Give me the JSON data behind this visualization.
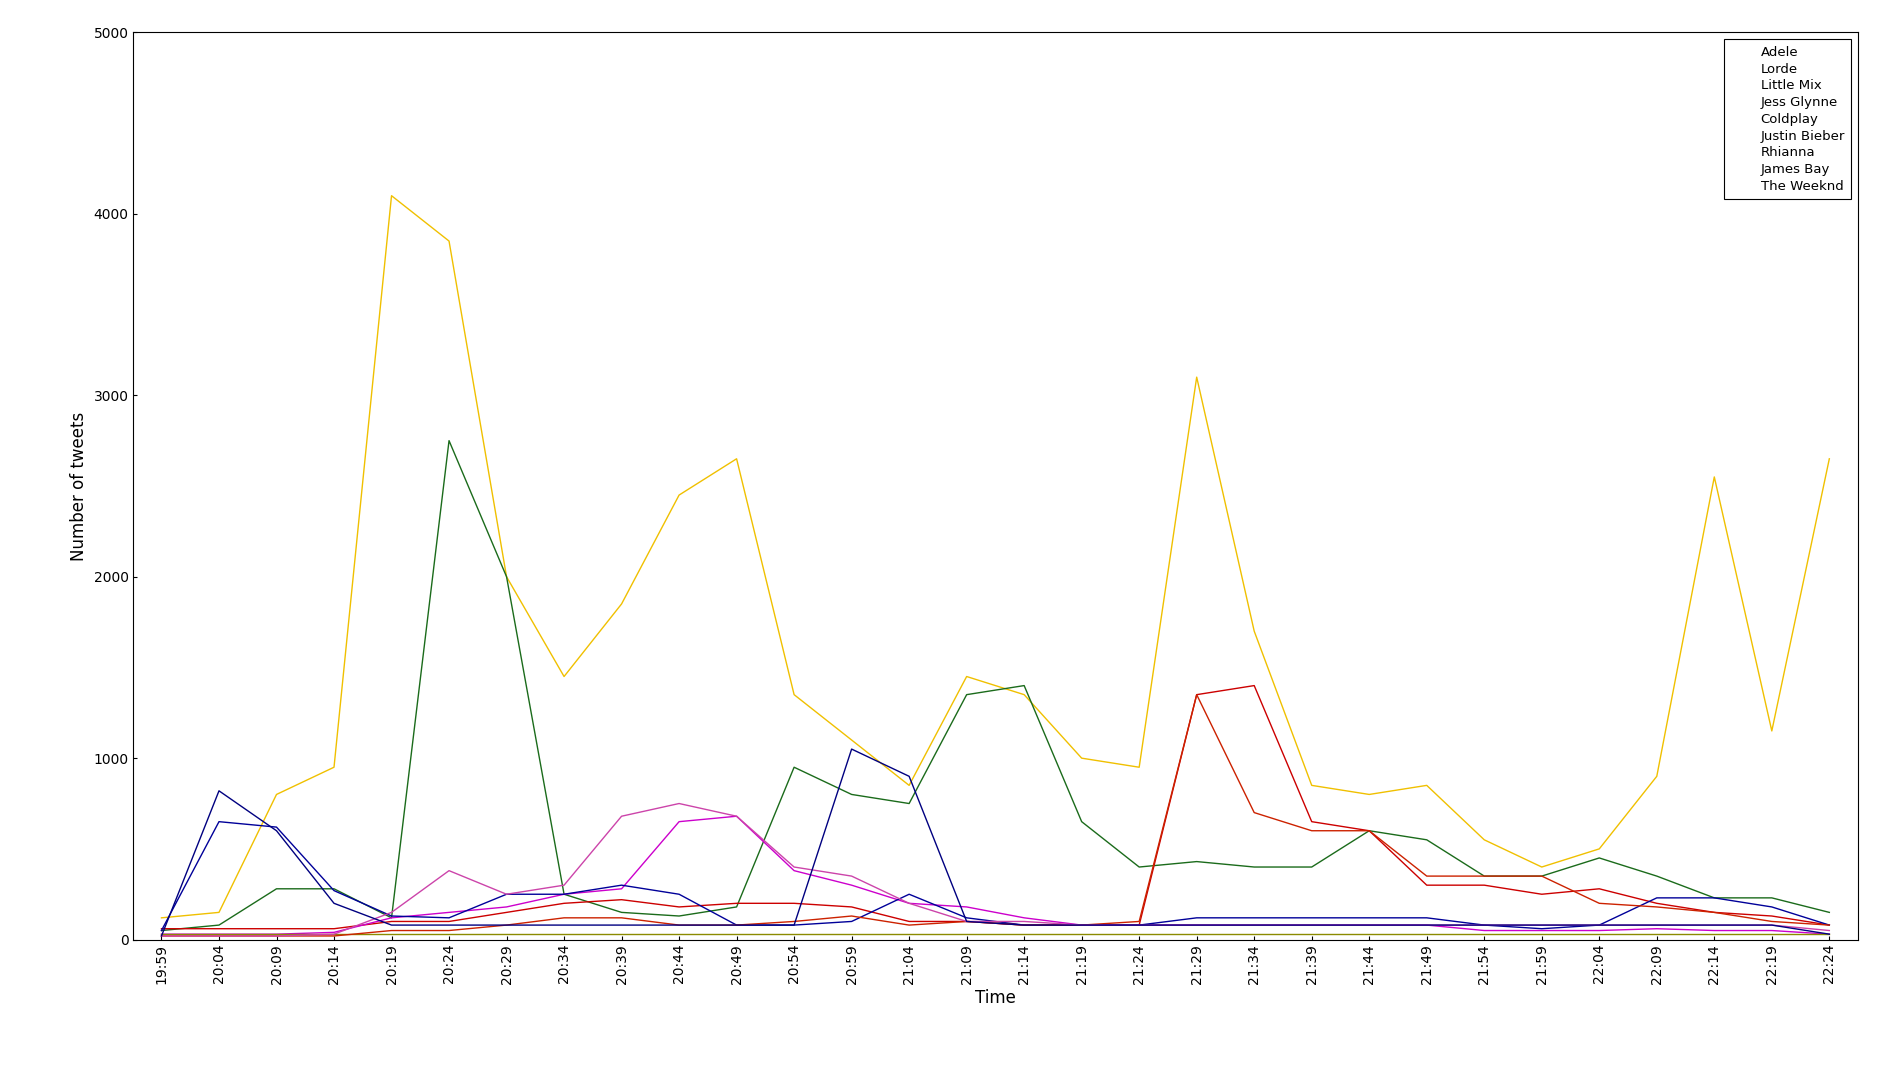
{
  "title": "",
  "xlabel": "Time",
  "ylabel": "Number of tweets",
  "time_labels": [
    "19:59",
    "20:04",
    "20:09",
    "20:14",
    "20:19",
    "20:24",
    "20:29",
    "20:34",
    "20:39",
    "20:44",
    "20:49",
    "20:54",
    "20:59",
    "21:04",
    "21:09",
    "21:14",
    "21:19",
    "21:24",
    "21:29",
    "21:34",
    "21:39",
    "21:44",
    "21:49",
    "21:54",
    "21:59",
    "22:04",
    "22:09",
    "22:14",
    "22:19",
    "22:24"
  ],
  "series": [
    {
      "name": "Adele",
      "color": "#F0C000",
      "values": [
        120,
        150,
        800,
        950,
        4100,
        3850,
        2000,
        1450,
        1850,
        2450,
        2650,
        1350,
        1100,
        850,
        1450,
        1350,
        1000,
        950,
        3100,
        1700,
        850,
        800,
        850,
        550,
        400,
        500,
        900,
        2550,
        1150,
        2650
      ]
    },
    {
      "name": "Lorde",
      "color": "#1B6B1B",
      "values": [
        50,
        80,
        280,
        280,
        120,
        2750,
        2000,
        250,
        150,
        130,
        180,
        950,
        800,
        750,
        1350,
        1400,
        650,
        400,
        430,
        400,
        400,
        600,
        550,
        350,
        350,
        450,
        350,
        230,
        230,
        150
      ]
    },
    {
      "name": "Little Mix",
      "color": "#CC0000",
      "values": [
        60,
        60,
        60,
        60,
        100,
        100,
        150,
        200,
        220,
        180,
        200,
        200,
        180,
        100,
        100,
        80,
        80,
        80,
        1350,
        1400,
        650,
        600,
        300,
        300,
        250,
        280,
        200,
        150,
        130,
        80
      ]
    },
    {
      "name": "Jess Glynne",
      "color": "#CC00CC",
      "values": [
        30,
        30,
        30,
        40,
        120,
        150,
        180,
        250,
        280,
        650,
        680,
        380,
        300,
        200,
        180,
        120,
        80,
        80,
        80,
        80,
        80,
        80,
        80,
        50,
        50,
        50,
        60,
        50,
        50,
        30
      ]
    },
    {
      "name": "Coldplay",
      "color": "#000099",
      "values": [
        50,
        650,
        620,
        270,
        130,
        120,
        250,
        250,
        300,
        250,
        80,
        80,
        100,
        250,
        120,
        80,
        80,
        80,
        120,
        120,
        120,
        120,
        120,
        80,
        60,
        80,
        230,
        230,
        180,
        80
      ]
    },
    {
      "name": "Justin Bieber",
      "color": "#8B8B00",
      "values": [
        30,
        30,
        30,
        30,
        30,
        30,
        30,
        30,
        30,
        30,
        30,
        30,
        30,
        30,
        30,
        30,
        30,
        30,
        30,
        30,
        30,
        30,
        30,
        30,
        30,
        30,
        30,
        30,
        30,
        30
      ]
    },
    {
      "name": "Rhianna",
      "color": "#CC2200",
      "values": [
        20,
        20,
        20,
        20,
        50,
        50,
        80,
        120,
        120,
        80,
        80,
        100,
        130,
        80,
        100,
        80,
        80,
        100,
        1350,
        700,
        600,
        600,
        350,
        350,
        350,
        200,
        180,
        150,
        100,
        80
      ]
    },
    {
      "name": "James Bay",
      "color": "#CC44AA",
      "values": [
        20,
        20,
        20,
        30,
        150,
        380,
        250,
        300,
        680,
        750,
        680,
        400,
        350,
        200,
        100,
        100,
        80,
        80,
        80,
        80,
        80,
        80,
        80,
        80,
        80,
        80,
        80,
        80,
        80,
        50
      ]
    },
    {
      "name": "The Weeknd",
      "color": "#000080",
      "values": [
        20,
        820,
        600,
        200,
        80,
        80,
        80,
        80,
        80,
        80,
        80,
        80,
        1050,
        900,
        100,
        80,
        80,
        80,
        80,
        80,
        80,
        80,
        80,
        80,
        80,
        80,
        80,
        80,
        80,
        30
      ]
    }
  ],
  "ylim": [
    0,
    5000
  ],
  "yticks": [
    0,
    1000,
    2000,
    3000,
    4000,
    5000
  ],
  "background_color": "#ffffff",
  "plot_bg": "#ffffff",
  "legend_loc": "upper right",
  "figsize": [
    18.96,
    10.8
  ],
  "dpi": 100
}
